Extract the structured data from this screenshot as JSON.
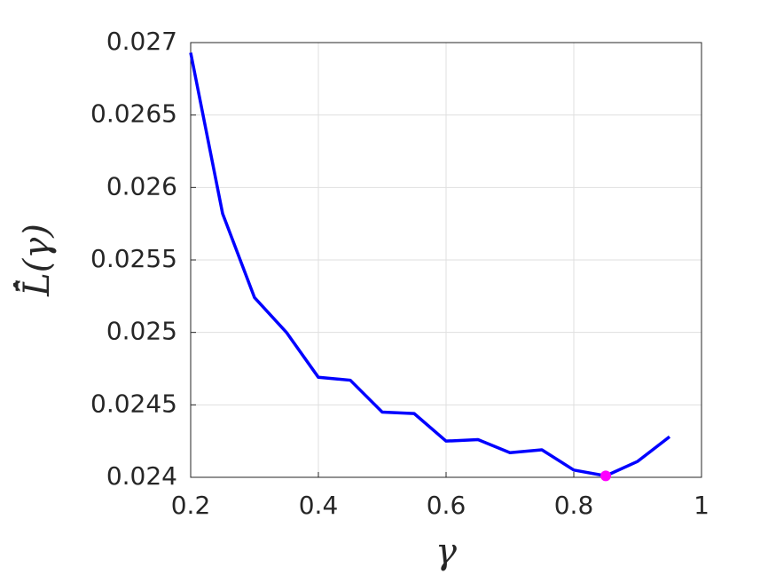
{
  "chart_data": {
    "type": "line",
    "x_label": "γ",
    "y_label": "L̄̂(γ)",
    "x": [
      0.2,
      0.25,
      0.3,
      0.35,
      0.4,
      0.45,
      0.5,
      0.55,
      0.6,
      0.65,
      0.7,
      0.75,
      0.8,
      0.85,
      0.9,
      0.95
    ],
    "series": [
      {
        "color": "#0000ff",
        "values": [
          0.02693,
          0.02582,
          0.02524,
          0.025,
          0.02469,
          0.02467,
          0.02445,
          0.02444,
          0.02425,
          0.02426,
          0.02417,
          0.02419,
          0.02405,
          0.02401,
          0.02411,
          0.02428
        ]
      }
    ],
    "highlight": {
      "x": 0.85,
      "y": 0.02401,
      "color": "#ff00ff"
    },
    "xlim": [
      0.2,
      1
    ],
    "xticks": [
      0.2,
      0.4,
      0.6,
      0.8,
      1
    ],
    "ylim": [
      0.024,
      0.027
    ],
    "yticks": [
      0.024,
      0.0245,
      0.025,
      0.0255,
      0.026,
      0.0265,
      0.027
    ],
    "grid": true
  }
}
